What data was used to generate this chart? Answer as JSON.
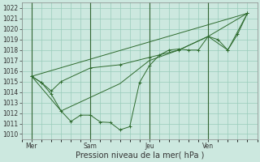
{
  "xlabel": "Pression niveau de la mer( hPa )",
  "ylim": [
    1009.5,
    1022.5
  ],
  "yticks": [
    1010,
    1011,
    1012,
    1013,
    1014,
    1015,
    1016,
    1017,
    1018,
    1019,
    1020,
    1021,
    1022
  ],
  "bg_color": "#cce8df",
  "grid_color": "#99ccbb",
  "line_color": "#2d6a2d",
  "day_labels": [
    "Mer",
    "Sam",
    "Jeu",
    "Ven"
  ],
  "day_positions": [
    1,
    4,
    7,
    10
  ],
  "vline_color": "#336633",
  "xlim": [
    0.5,
    12.5
  ],
  "series_main": [
    [
      1,
      1015.5
    ],
    [
      1.5,
      1014.9
    ],
    [
      2.0,
      1014.1
    ],
    [
      2.5,
      1015.0
    ],
    [
      4,
      1016.3
    ],
    [
      5.5,
      1016.6
    ],
    [
      7,
      1017.3
    ],
    [
      8.5,
      1018.0
    ],
    [
      10,
      1019.3
    ],
    [
      11,
      1018.0
    ],
    [
      12,
      1021.5
    ]
  ],
  "series_zigzag": [
    [
      1,
      1015.5
    ],
    [
      1.5,
      1014.9
    ],
    [
      2.0,
      1013.8
    ],
    [
      2.5,
      1012.2
    ],
    [
      3.0,
      1011.2
    ],
    [
      3.5,
      1011.8
    ],
    [
      4.0,
      1011.8
    ],
    [
      4.5,
      1011.15
    ],
    [
      5.0,
      1011.1
    ],
    [
      5.5,
      1010.4
    ],
    [
      6.0,
      1010.7
    ],
    [
      6.5,
      1014.9
    ],
    [
      7.0,
      1016.5
    ],
    [
      7.5,
      1017.5
    ],
    [
      8.0,
      1018.0
    ],
    [
      8.5,
      1018.1
    ],
    [
      9.0,
      1018.0
    ],
    [
      9.5,
      1018.0
    ],
    [
      10.0,
      1019.3
    ],
    [
      10.5,
      1019.0
    ],
    [
      11.0,
      1018.0
    ],
    [
      11.5,
      1019.5
    ],
    [
      12.0,
      1021.5
    ]
  ],
  "series_smooth": [
    [
      1,
      1015.5
    ],
    [
      2.5,
      1012.2
    ],
    [
      4.0,
      1013.5
    ],
    [
      5.5,
      1014.8
    ],
    [
      7.0,
      1017.0
    ],
    [
      8.5,
      1018.0
    ],
    [
      10.0,
      1019.3
    ],
    [
      12.0,
      1021.5
    ]
  ],
  "series_linear": [
    [
      1,
      1015.5
    ],
    [
      12.0,
      1021.5
    ]
  ],
  "tick_fontsize": 5.5,
  "label_fontsize": 7.0
}
